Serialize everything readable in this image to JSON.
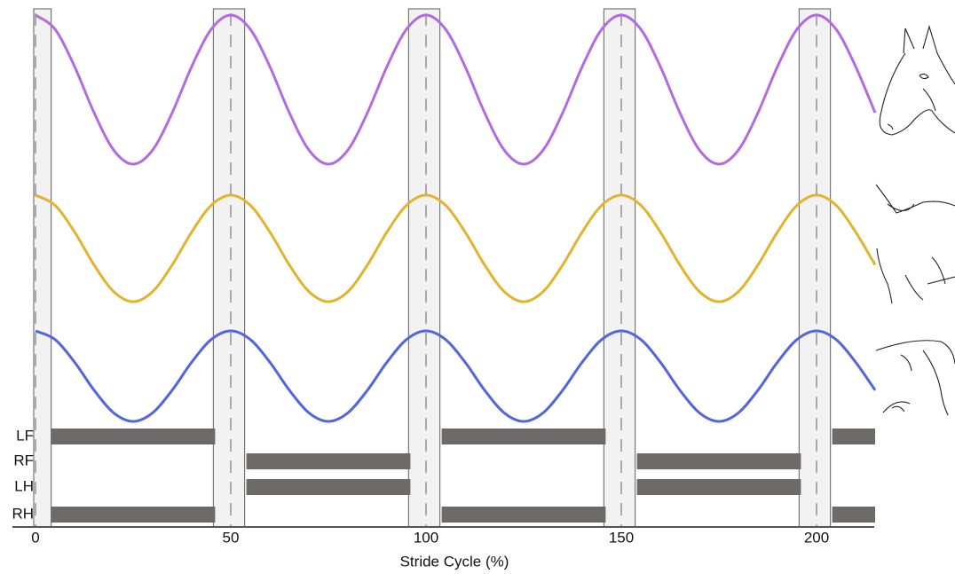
{
  "chart_data": {
    "type": "line",
    "x_label": "Stride Cycle (%)",
    "xlim": [
      0,
      215
    ],
    "xticks": [
      0,
      50,
      100,
      150,
      200
    ],
    "x": [
      0,
      5,
      10,
      15,
      20,
      25,
      30,
      35,
      40,
      45,
      50,
      55,
      60,
      65,
      70,
      75,
      80,
      85,
      90,
      95,
      100,
      105,
      110,
      115,
      120,
      125,
      130,
      135,
      140,
      145,
      150,
      155,
      160,
      165,
      170,
      175,
      180,
      185,
      190,
      195,
      200,
      205,
      210,
      215
    ],
    "series": [
      {
        "color": "#b36ae2",
        "values": [
          1,
          0.81,
          0.31,
          -0.31,
          -0.81,
          -1,
          -0.81,
          -0.31,
          0.31,
          0.81,
          1,
          0.81,
          0.31,
          -0.31,
          -0.81,
          -1,
          -0.81,
          -0.31,
          0.31,
          0.81,
          1,
          0.81,
          0.31,
          -0.31,
          -0.81,
          -1,
          -0.81,
          -0.31,
          0.31,
          0.81,
          1,
          0.81,
          0.31,
          -0.31,
          -0.81,
          -1,
          -0.81,
          -0.31,
          0.31,
          0.81,
          1,
          0.81,
          0.31,
          -0.31
        ]
      },
      {
        "color": "#e3b330",
        "values": [
          1,
          0.81,
          0.31,
          -0.31,
          -0.81,
          -1,
          -0.81,
          -0.31,
          0.31,
          0.81,
          1,
          0.81,
          0.31,
          -0.31,
          -0.81,
          -1,
          -0.81,
          -0.31,
          0.31,
          0.81,
          1,
          0.81,
          0.31,
          -0.31,
          -0.81,
          -1,
          -0.81,
          -0.31,
          0.31,
          0.81,
          1,
          0.81,
          0.31,
          -0.31,
          -0.81,
          -1,
          -0.81,
          -0.31,
          0.31,
          0.81,
          1,
          0.81,
          0.31,
          -0.31
        ]
      },
      {
        "color": "#5566dd",
        "values": [
          1,
          0.81,
          0.31,
          -0.31,
          -0.81,
          -1,
          -0.81,
          -0.31,
          0.31,
          0.81,
          1,
          0.81,
          0.31,
          -0.31,
          -0.81,
          -1,
          -0.81,
          -0.31,
          0.31,
          0.81,
          1,
          0.81,
          0.31,
          -0.31,
          -0.81,
          -1,
          -0.81,
          -0.31,
          0.31,
          0.81,
          1,
          0.81,
          0.31,
          -0.31,
          -0.81,
          -1,
          -0.81,
          -0.31,
          0.31,
          0.81,
          1,
          0.81,
          0.31,
          -0.31
        ]
      }
    ],
    "bands": [
      [
        0,
        4
      ],
      [
        46,
        54
      ],
      [
        96,
        104
      ],
      [
        146,
        154
      ],
      [
        196,
        204
      ]
    ],
    "gait": {
      "color": "#6e6a6a",
      "limbs": [
        "LF",
        "RF",
        "LH",
        "RH"
      ],
      "stance": [
        [
          [
            4,
            46
          ],
          [
            104,
            146
          ],
          [
            204,
            215
          ]
        ],
        [
          [
            54,
            96
          ],
          [
            154,
            196
          ]
        ],
        [
          [
            54,
            96
          ],
          [
            154,
            196
          ]
        ],
        [
          [
            4,
            46
          ],
          [
            104,
            146
          ],
          [
            204,
            215
          ]
        ]
      ]
    }
  }
}
